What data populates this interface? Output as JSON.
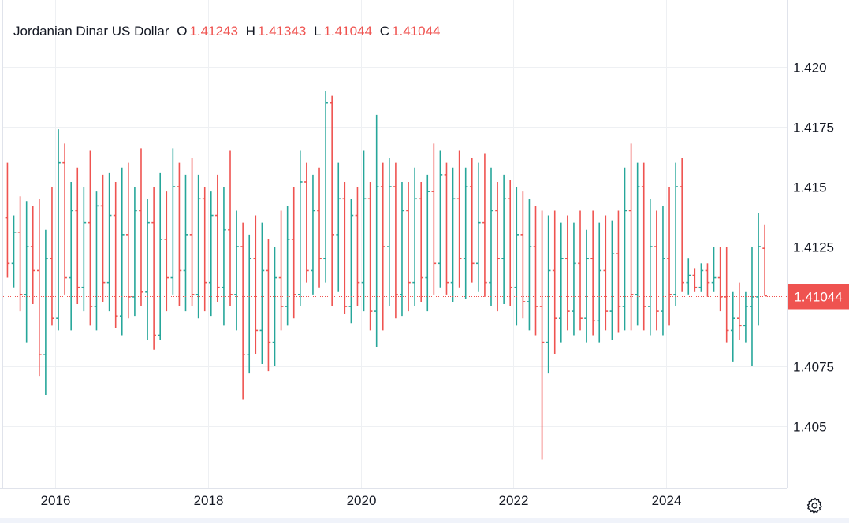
{
  "legend": {
    "symbol": "Jordanian Dinar US Dollar",
    "o_label": "O",
    "o_value": "1.41243",
    "h_label": "H",
    "h_value": "1.41343",
    "l_label": "L",
    "l_value": "1.41044",
    "c_label": "C",
    "c_value": "1.41044"
  },
  "colors": {
    "up": "#26a69a",
    "down": "#ef5350",
    "grid": "#eef0f3",
    "text": "#131722"
  },
  "icons": {
    "settings": "gear-icon"
  },
  "chart_data": {
    "type": "bar",
    "style": "ohlc-bars",
    "y_range": [
      1.4024,
      1.4228
    ],
    "y_ticks": [
      {
        "value": 1.42,
        "label": "1.420"
      },
      {
        "value": 1.4175,
        "label": "1.4175"
      },
      {
        "value": 1.415,
        "label": "1.415"
      },
      {
        "value": 1.4125,
        "label": "1.4125"
      },
      {
        "value": 1.4075,
        "label": "1.4075"
      },
      {
        "value": 1.405,
        "label": "1.405"
      }
    ],
    "x_range": [
      "2015-04",
      "2025-06"
    ],
    "x_ticks": [
      {
        "value": "2016",
        "label": "2016"
      },
      {
        "value": "2018",
        "label": "2018"
      },
      {
        "value": "2020",
        "label": "2020"
      },
      {
        "value": "2022",
        "label": "2022"
      },
      {
        "value": "2024",
        "label": "2024"
      }
    ],
    "last_price": {
      "value": 1.41044,
      "label": "1.41044"
    },
    "series": [
      {
        "values": [
          [
            "2015-05",
            1.4137,
            1.416,
            1.4112,
            1.4118
          ],
          [
            "2015-06",
            1.4118,
            1.4138,
            1.4108,
            1.4131
          ],
          [
            "2015-07",
            1.4131,
            1.4146,
            1.4098,
            1.4105
          ],
          [
            "2015-08",
            1.4105,
            1.4144,
            1.4085,
            1.4125
          ],
          [
            "2015-09",
            1.4125,
            1.4142,
            1.4101,
            1.4115
          ],
          [
            "2015-10",
            1.4115,
            1.4145,
            1.4071,
            1.408
          ],
          [
            "2015-11",
            1.408,
            1.4132,
            1.4063,
            1.412
          ],
          [
            "2015-12",
            1.412,
            1.415,
            1.4092,
            1.4095
          ],
          [
            "2016-01",
            1.4095,
            1.4174,
            1.409,
            1.416
          ],
          [
            "2016-02",
            1.416,
            1.4168,
            1.4105,
            1.4112
          ],
          [
            "2016-03",
            1.4112,
            1.4152,
            1.409,
            1.414
          ],
          [
            "2016-04",
            1.414,
            1.4158,
            1.4101,
            1.4108
          ],
          [
            "2016-05",
            1.4108,
            1.415,
            1.4098,
            1.4135
          ],
          [
            "2016-06",
            1.4135,
            1.4165,
            1.4092,
            1.41
          ],
          [
            "2016-07",
            1.41,
            1.4148,
            1.409,
            1.4142
          ],
          [
            "2016-08",
            1.4142,
            1.4155,
            1.4102,
            1.411
          ],
          [
            "2016-09",
            1.411,
            1.4156,
            1.4098,
            1.4138
          ],
          [
            "2016-10",
            1.4138,
            1.4152,
            1.4091,
            1.4096
          ],
          [
            "2016-11",
            1.4096,
            1.4158,
            1.4088,
            1.413
          ],
          [
            "2016-12",
            1.413,
            1.416,
            1.4095,
            1.4104
          ],
          [
            "2017-01",
            1.4104,
            1.415,
            1.4096,
            1.414
          ],
          [
            "2017-02",
            1.414,
            1.4166,
            1.41,
            1.4106
          ],
          [
            "2017-03",
            1.4106,
            1.4145,
            1.4086,
            1.4135
          ],
          [
            "2017-04",
            1.4135,
            1.415,
            1.4082,
            1.4088
          ],
          [
            "2017-05",
            1.4088,
            1.4156,
            1.4086,
            1.4128
          ],
          [
            "2017-06",
            1.4128,
            1.4148,
            1.4098,
            1.4112
          ],
          [
            "2017-07",
            1.4112,
            1.4166,
            1.4105,
            1.415
          ],
          [
            "2017-08",
            1.415,
            1.416,
            1.41,
            1.4115
          ],
          [
            "2017-09",
            1.4115,
            1.4155,
            1.4098,
            1.413
          ],
          [
            "2017-10",
            1.413,
            1.4162,
            1.41,
            1.4105
          ],
          [
            "2017-11",
            1.4105,
            1.4155,
            1.4095,
            1.4145
          ],
          [
            "2017-12",
            1.4145,
            1.415,
            1.4098,
            1.411
          ],
          [
            "2018-01",
            1.411,
            1.4148,
            1.4096,
            1.4138
          ],
          [
            "2018-02",
            1.4138,
            1.4155,
            1.4102,
            1.4108
          ],
          [
            "2018-03",
            1.4108,
            1.415,
            1.4092,
            1.4132
          ],
          [
            "2018-04",
            1.4132,
            1.4165,
            1.41,
            1.4105
          ],
          [
            "2018-05",
            1.4105,
            1.414,
            1.409,
            1.4125
          ],
          [
            "2018-06",
            1.4125,
            1.4135,
            1.4061,
            1.408
          ],
          [
            "2018-07",
            1.408,
            1.413,
            1.4072,
            1.412
          ],
          [
            "2018-08",
            1.412,
            1.4138,
            1.408,
            1.409
          ],
          [
            "2018-09",
            1.409,
            1.4135,
            1.4076,
            1.4115
          ],
          [
            "2018-10",
            1.4115,
            1.4128,
            1.4073,
            1.4085
          ],
          [
            "2018-11",
            1.4085,
            1.4125,
            1.4075,
            1.4112
          ],
          [
            "2018-12",
            1.4112,
            1.414,
            1.409,
            1.41
          ],
          [
            "2019-01",
            1.41,
            1.4142,
            1.4092,
            1.4128
          ],
          [
            "2019-02",
            1.4128,
            1.415,
            1.4095,
            1.4105
          ],
          [
            "2019-03",
            1.4105,
            1.4165,
            1.41,
            1.4152
          ],
          [
            "2019-04",
            1.4152,
            1.416,
            1.411,
            1.4115
          ],
          [
            "2019-05",
            1.4115,
            1.4155,
            1.4105,
            1.414
          ],
          [
            "2019-06",
            1.414,
            1.4158,
            1.4108,
            1.412
          ],
          [
            "2019-07",
            1.412,
            1.419,
            1.411,
            1.4185
          ],
          [
            "2019-08",
            1.4185,
            1.4188,
            1.41,
            1.413
          ],
          [
            "2019-09",
            1.413,
            1.416,
            1.4106,
            1.4145
          ],
          [
            "2019-10",
            1.4145,
            1.4152,
            1.4097,
            1.41
          ],
          [
            "2019-11",
            1.41,
            1.4145,
            1.4093,
            1.4138
          ],
          [
            "2019-12",
            1.4138,
            1.415,
            1.41,
            1.411
          ],
          [
            "2020-01",
            1.411,
            1.4165,
            1.4098,
            1.4145
          ],
          [
            "2020-02",
            1.4145,
            1.4152,
            1.409,
            1.4098
          ],
          [
            "2020-03",
            1.4098,
            1.418,
            1.4083,
            1.415
          ],
          [
            "2020-04",
            1.415,
            1.416,
            1.409,
            1.4125
          ],
          [
            "2020-05",
            1.4125,
            1.4162,
            1.41,
            1.415
          ],
          [
            "2020-06",
            1.415,
            1.416,
            1.4095,
            1.4105
          ],
          [
            "2020-07",
            1.4105,
            1.4152,
            1.4096,
            1.414
          ],
          [
            "2020-08",
            1.414,
            1.4152,
            1.4098,
            1.411
          ],
          [
            "2020-09",
            1.411,
            1.4158,
            1.41,
            1.4145
          ],
          [
            "2020-10",
            1.4145,
            1.4152,
            1.4102,
            1.4112
          ],
          [
            "2020-11",
            1.4112,
            1.4155,
            1.4098,
            1.4148
          ],
          [
            "2020-12",
            1.4148,
            1.4168,
            1.4105,
            1.4118
          ],
          [
            "2021-01",
            1.4118,
            1.4165,
            1.4108,
            1.4155
          ],
          [
            "2021-02",
            1.4155,
            1.416,
            1.4105,
            1.411
          ],
          [
            "2021-03",
            1.411,
            1.4158,
            1.4102,
            1.4145
          ],
          [
            "2021-04",
            1.4145,
            1.4165,
            1.4108,
            1.412
          ],
          [
            "2021-05",
            1.412,
            1.4158,
            1.4103,
            1.415
          ],
          [
            "2021-06",
            1.415,
            1.4162,
            1.411,
            1.4118
          ],
          [
            "2021-07",
            1.4118,
            1.416,
            1.4106,
            1.4135
          ],
          [
            "2021-08",
            1.4135,
            1.4164,
            1.4104,
            1.411
          ],
          [
            "2021-09",
            1.411,
            1.4158,
            1.41,
            1.414
          ],
          [
            "2021-10",
            1.414,
            1.4152,
            1.4098,
            1.412
          ],
          [
            "2021-11",
            1.412,
            1.4155,
            1.4101,
            1.4145
          ],
          [
            "2021-12",
            1.4145,
            1.4153,
            1.41,
            1.4108
          ],
          [
            "2022-01",
            1.4108,
            1.415,
            1.4092,
            1.413
          ],
          [
            "2022-02",
            1.413,
            1.4148,
            1.4095,
            1.4102
          ],
          [
            "2022-03",
            1.4102,
            1.4145,
            1.409,
            1.4125
          ],
          [
            "2022-04",
            1.4125,
            1.4142,
            1.4088,
            1.41
          ],
          [
            "2022-05",
            1.41,
            1.414,
            1.4036,
            1.4085
          ],
          [
            "2022-06",
            1.4085,
            1.4138,
            1.4072,
            1.4115
          ],
          [
            "2022-07",
            1.4115,
            1.414,
            1.408,
            1.4095
          ],
          [
            "2022-08",
            1.4095,
            1.4135,
            1.4085,
            1.412
          ],
          [
            "2022-09",
            1.412,
            1.4138,
            1.409,
            1.4098
          ],
          [
            "2022-10",
            1.4098,
            1.4135,
            1.4088,
            1.4118
          ],
          [
            "2022-11",
            1.4118,
            1.414,
            1.409,
            1.4095
          ],
          [
            "2022-12",
            1.4095,
            1.4132,
            1.4085,
            1.412
          ],
          [
            "2023-01",
            1.412,
            1.414,
            1.4088,
            1.4094
          ],
          [
            "2023-02",
            1.4094,
            1.4135,
            1.4085,
            1.4115
          ],
          [
            "2023-03",
            1.4115,
            1.4138,
            1.409,
            1.4098
          ],
          [
            "2023-04",
            1.4098,
            1.4136,
            1.4086,
            1.4122
          ],
          [
            "2023-05",
            1.4122,
            1.414,
            1.4089,
            1.41
          ],
          [
            "2023-06",
            1.41,
            1.4158,
            1.409,
            1.414
          ],
          [
            "2023-07",
            1.414,
            1.4168,
            1.409,
            1.4105
          ],
          [
            "2023-08",
            1.4105,
            1.416,
            1.4092,
            1.415
          ],
          [
            "2023-09",
            1.415,
            1.416,
            1.409,
            1.41
          ],
          [
            "2023-10",
            1.41,
            1.4145,
            1.4088,
            1.4125
          ],
          [
            "2023-11",
            1.4125,
            1.414,
            1.409,
            1.4098
          ],
          [
            "2023-12",
            1.4098,
            1.4142,
            1.4088,
            1.412
          ],
          [
            "2024-01",
            1.412,
            1.415,
            1.4092,
            1.4105
          ],
          [
            "2024-02",
            1.4105,
            1.416,
            1.41,
            1.415
          ],
          [
            "2024-03",
            1.415,
            1.4162,
            1.4106,
            1.411
          ],
          [
            "2024-04",
            1.411,
            1.412,
            1.4105,
            1.4113
          ],
          [
            "2024-05",
            1.4113,
            1.4116,
            1.4106,
            1.4108
          ],
          [
            "2024-06",
            1.4108,
            1.4118,
            1.4106,
            1.4115
          ],
          [
            "2024-07",
            1.4115,
            1.4118,
            1.4104,
            1.411
          ],
          [
            "2024-08",
            1.411,
            1.4125,
            1.4106,
            1.4112
          ],
          [
            "2024-09",
            1.4112,
            1.4125,
            1.4098,
            1.4104
          ],
          [
            "2024-10",
            1.4104,
            1.4125,
            1.4085,
            1.409
          ],
          [
            "2024-11",
            1.409,
            1.4106,
            1.4077,
            1.4095
          ],
          [
            "2024-12",
            1.4095,
            1.411,
            1.4086,
            1.4092
          ],
          [
            "2025-01",
            1.4092,
            1.4106,
            1.4085,
            1.41
          ],
          [
            "2025-02",
            1.41,
            1.4125,
            1.4075,
            1.4104
          ],
          [
            "2025-03",
            1.4104,
            1.4139,
            1.4092,
            1.4125
          ],
          [
            "2025-04",
            1.41243,
            1.41343,
            1.41044,
            1.41044
          ]
        ]
      }
    ]
  }
}
